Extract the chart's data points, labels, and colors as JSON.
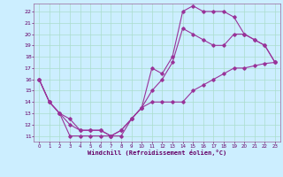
{
  "xlabel": "Windchill (Refroidissement éolien,°C)",
  "bg_color": "#cceeff",
  "grid_color": "#aaddcc",
  "line_color": "#993399",
  "xlim": [
    -0.5,
    23.5
  ],
  "ylim": [
    10.5,
    22.7
  ],
  "xticks": [
    0,
    1,
    2,
    3,
    4,
    5,
    6,
    7,
    8,
    9,
    10,
    11,
    12,
    13,
    14,
    15,
    16,
    17,
    18,
    19,
    20,
    21,
    22,
    23
  ],
  "yticks": [
    11,
    12,
    13,
    14,
    15,
    16,
    17,
    18,
    19,
    20,
    21,
    22
  ],
  "series1_x": [
    0,
    1,
    2,
    3,
    4,
    5,
    6,
    7,
    8,
    9,
    10,
    11,
    12,
    13,
    14,
    15,
    16,
    17,
    18,
    19,
    20,
    21,
    22,
    23
  ],
  "series1_y": [
    16,
    14,
    13,
    11,
    11,
    11,
    11,
    11,
    11,
    12.5,
    13.5,
    17,
    16.5,
    18,
    22,
    22.5,
    22,
    22,
    22,
    21.5,
    20,
    19.5,
    19,
    17.5
  ],
  "series2_x": [
    0,
    1,
    2,
    3,
    4,
    5,
    6,
    7,
    8,
    9,
    10,
    11,
    12,
    13,
    14,
    15,
    16,
    17,
    18,
    19,
    20,
    21,
    22,
    23
  ],
  "series2_y": [
    16,
    14,
    13,
    12,
    11.5,
    11.5,
    11.5,
    11,
    11.5,
    12.5,
    13.5,
    14,
    14,
    14,
    14,
    15,
    15.5,
    16,
    16.5,
    17,
    17,
    17.2,
    17.4,
    17.5
  ],
  "series3_x": [
    0,
    1,
    2,
    3,
    4,
    5,
    6,
    7,
    8,
    9,
    10,
    11,
    12,
    13,
    14,
    15,
    16,
    17,
    18,
    19,
    20,
    21,
    22,
    23
  ],
  "series3_y": [
    16,
    14,
    13,
    12.5,
    11.5,
    11.5,
    11.5,
    11,
    11.5,
    12.5,
    13.5,
    15,
    16,
    17.5,
    20.5,
    20,
    19.5,
    19,
    19,
    20,
    20,
    19.5,
    19,
    17.5
  ]
}
